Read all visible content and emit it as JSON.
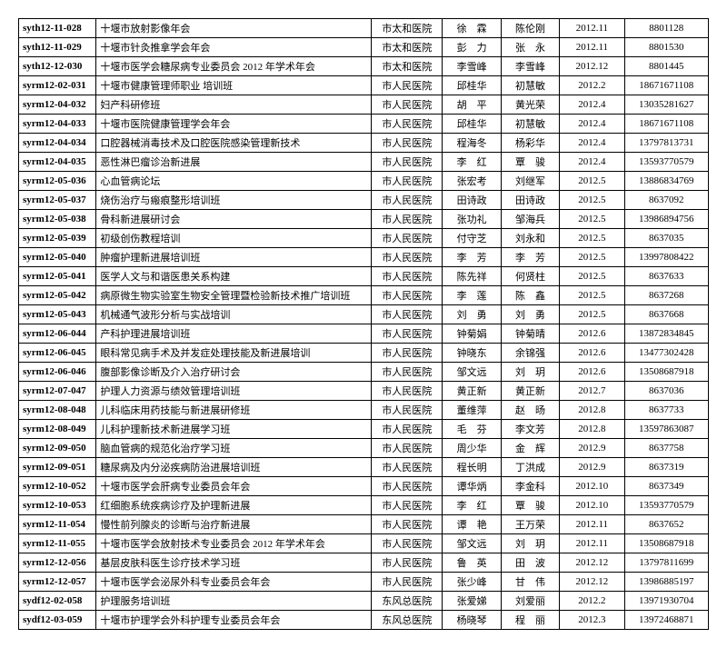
{
  "rows": [
    [
      "syth12-11-028",
      "十堰市放射影像年会",
      "市太和医院",
      "徐　霖",
      "陈伦刚",
      "2012.11",
      "8801128"
    ],
    [
      "syth12-11-029",
      "十堰市针灸推拿学会年会",
      "市太和医院",
      "彭　力",
      "张　永",
      "2012.11",
      "8801530"
    ],
    [
      "syth12-12-030",
      "十堰市医学会糖尿病专业委员会 2012 年学术年会",
      "市太和医院",
      "李雪峰",
      "李雪峰",
      "2012.12",
      "8801445"
    ],
    [
      "syrm12-02-031",
      "十堰市健康管理师职业 培训班",
      "市人民医院",
      "邱桂华",
      "初慧敏",
      "2012.2",
      "18671671108"
    ],
    [
      "syrm12-04-032",
      "妇产科研修班",
      "市人民医院",
      "胡　平",
      "黄光荣",
      "2012.4",
      "13035281627"
    ],
    [
      "syrm12-04-033",
      "十堰市医院健康管理学会年会",
      "市人民医院",
      "邱桂华",
      "初慧敏",
      "2012.4",
      "18671671108"
    ],
    [
      "syrm12-04-034",
      "口腔器械消毒技术及口腔医院感染管理新技术",
      "市人民医院",
      "程海冬",
      "杨彩华",
      "2012.4",
      "13797813731"
    ],
    [
      "syrm12-04-035",
      "恶性淋巴瘤诊治新进展",
      "市人民医院",
      "李　红",
      "覃　骏",
      "2012.4",
      "13593770579"
    ],
    [
      "syrm12-05-036",
      "心血管病论坛",
      "市人民医院",
      "张宏考",
      "刘继军",
      "2012.5",
      "13886834769"
    ],
    [
      "syrm12-05-037",
      "烧伤治疗与瘢痕整形培训班",
      "市人民医院",
      "田诗政",
      "田诗政",
      "2012.5",
      "8637092"
    ],
    [
      "syrm12-05-038",
      "骨科新进展研讨会",
      "市人民医院",
      "张功礼",
      "邹海兵",
      "2012.5",
      "13986894756"
    ],
    [
      "syrm12-05-039",
      "初级创伤教程培训",
      "市人民医院",
      "付守芝",
      "刘永和",
      "2012.5",
      "8637035"
    ],
    [
      "syrm12-05-040",
      "肿瘤护理新进展培训班",
      "市人民医院",
      "李　芳",
      "李　芳",
      "2012.5",
      "13997808422"
    ],
    [
      "syrm12-05-041",
      "医学人文与和谐医患关系构建",
      "市人民医院",
      "陈先祥",
      "何贤柱",
      "2012.5",
      "8637633"
    ],
    [
      "syrm12-05-042",
      "病原微生物实验室生物安全管理暨检验新技术推广培训班",
      "市人民医院",
      "李　莲",
      "陈　鑫",
      "2012.5",
      "8637268"
    ],
    [
      "syrm12-05-043",
      "机械通气波形分析与实战培训",
      "市人民医院",
      "刘　勇",
      "刘　勇",
      "2012.5",
      "8637668"
    ],
    [
      "syrm12-06-044",
      "产科护理进展培训班",
      "市人民医院",
      "钟菊娟",
      "钟菊晴",
      "2012.6",
      "13872834845"
    ],
    [
      "syrm12-06-045",
      "眼科常见病手术及并发症处理技能及新进展培训",
      "市人民医院",
      "钟晓东",
      "余锦强",
      "2012.6",
      "13477302428"
    ],
    [
      "syrm12-06-046",
      "腹部影像诊断及介入治疗研讨会",
      "市人民医院",
      "邹文远",
      "刘　玥",
      "2012.6",
      "13508687918"
    ],
    [
      "syrm12-07-047",
      "护理人力资源与绩效管理培训班",
      "市人民医院",
      "黄正新",
      "黄正新",
      "2012.7",
      "8637036"
    ],
    [
      "syrm12-08-048",
      "儿科临床用药技能与新进展研修班",
      "市人民医院",
      "董维萍",
      "赵　旸",
      "2012.8",
      "8637733"
    ],
    [
      "syrm12-08-049",
      "儿科护理新技术新进展学习班",
      "市人民医院",
      "毛　芬",
      "李文芳",
      "2012.8",
      "13597863087"
    ],
    [
      "syrm12-09-050",
      "脑血管病的规范化治疗学习班",
      "市人民医院",
      "周少华",
      "金　辉",
      "2012.9",
      "8637758"
    ],
    [
      "syrm12-09-051",
      "糖尿病及内分泌疾病防治进展培训班",
      "市人民医院",
      "程长明",
      "丁洪成",
      "2012.9",
      "8637319"
    ],
    [
      "syrm12-10-052",
      "十堰市医学会肝病专业委员会年会",
      "市人民医院",
      "谭华炳",
      "李金科",
      "2012.10",
      "8637349"
    ],
    [
      "syrm12-10-053",
      "红细胞系统疾病诊疗及护理新进展",
      "市人民医院",
      "李　红",
      "覃　骏",
      "2012.10",
      "13593770579"
    ],
    [
      "syrm12-11-054",
      "慢性前列腺炎的诊断与治疗新进展",
      "市人民医院",
      "谭　艳",
      "王万荣",
      "2012.11",
      "8637652"
    ],
    [
      "syrm12-11-055",
      "十堰市医学会放射技术专业委员会 2012 年学术年会",
      "市人民医院",
      "邹文远",
      "刘　玥",
      "2012.11",
      "13508687918"
    ],
    [
      "syrm12-12-056",
      "基层皮肤科医生诊疗技术学习班",
      "市人民医院",
      "鲁　英",
      "田　波",
      "2012.12",
      "13797811699"
    ],
    [
      "syrm12-12-057",
      "十堰市医学会泌尿外科专业委员会年会",
      "市人民医院",
      "张少峰",
      "甘　伟",
      "2012.12",
      "13986885197"
    ],
    [
      "sydf12-02-058",
      "护理服务培训班",
      "东风总医院",
      "张爱娣",
      "刘爱丽",
      "2012.2",
      "13971930704"
    ],
    [
      "sydf12-03-059",
      "十堰市护理学会外科护理专业委员会年会",
      "东风总医院",
      "杨晓琴",
      "程　丽",
      "2012.3",
      "13972468871"
    ]
  ]
}
